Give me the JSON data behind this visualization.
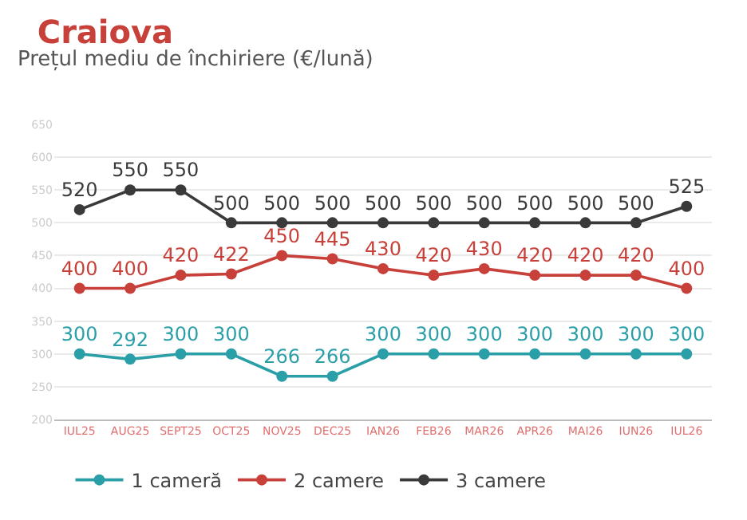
{
  "chart_data": {
    "type": "line",
    "title": "Craiova",
    "subtitle": "Prețul mediu de închiriere (€/lună)",
    "categories": [
      "IUL25",
      "AUG25",
      "SEPT25",
      "OCT25",
      "NOV25",
      "DEC25",
      "IAN26",
      "FEB26",
      "MAR26",
      "APR26",
      "MAI26",
      "IUN26",
      "IUL26"
    ],
    "series": [
      {
        "name": "1 cameră",
        "color": "#2a9fa8",
        "values": [
          300,
          292,
          300,
          300,
          266,
          266,
          300,
          300,
          300,
          300,
          300,
          300,
          300
        ]
      },
      {
        "name": "2 camere",
        "color": "#c8403a",
        "values": [
          400,
          400,
          420,
          422,
          450,
          445,
          430,
          420,
          430,
          420,
          420,
          420,
          400
        ]
      },
      {
        "name": "3 camere",
        "color": "#3a3a3a",
        "values": [
          520,
          550,
          550,
          500,
          500,
          500,
          500,
          500,
          500,
          500,
          500,
          500,
          525
        ]
      }
    ],
    "ylim": [
      200,
      650
    ],
    "yticks": [
      200,
      250,
      300,
      350,
      400,
      450,
      500,
      550,
      600,
      650
    ],
    "grid": "y",
    "legend": "bottom",
    "marker": "circle",
    "line_style": "solid",
    "data_labels": true
  }
}
